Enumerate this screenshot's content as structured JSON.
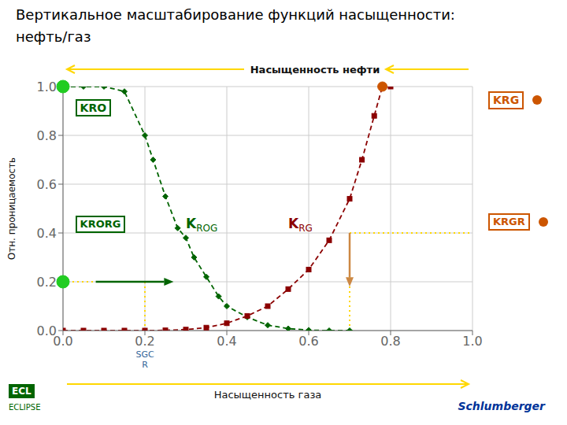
{
  "chart_data": {
    "type": "line",
    "title": "Вертикальное масштабирование функций насыщенности:",
    "subtitle": "нефть/газ",
    "xlabel": "Насыщенность газа",
    "ylabel": "Отн. проницаемость",
    "xlim": [
      0,
      1
    ],
    "ylim": [
      0,
      1
    ],
    "xticks": [
      {
        "value": 0,
        "label": "0.0"
      },
      0.2,
      0.4,
      0.6,
      0.8,
      {
        "value": 1.0,
        "label": "1.0"
      }
    ],
    "yticks": [
      {
        "value": 0,
        "label": "0.0"
      },
      0.2,
      0.4,
      0.6,
      0.8,
      {
        "value": 1.0,
        "label": "1.0"
      }
    ],
    "grid": true,
    "series": [
      {
        "name": "KROG",
        "color": "#006400",
        "marker": "diamond",
        "line_style": "dashed",
        "label_at": [
          0.3,
          0.42
        ],
        "x": [
          0.0,
          0.05,
          0.1,
          0.15,
          0.2,
          0.22,
          0.25,
          0.28,
          0.3,
          0.32,
          0.35,
          0.38,
          0.4,
          0.45,
          0.5,
          0.55,
          0.6,
          0.65,
          0.7
        ],
        "values": [
          1.0,
          1.0,
          1.0,
          0.98,
          0.8,
          0.7,
          0.55,
          0.42,
          0.38,
          0.3,
          0.22,
          0.14,
          0.1,
          0.055,
          0.022,
          0.008,
          0.002,
          0.0,
          0.0
        ]
      },
      {
        "name": "KRG",
        "color": "#8B0000",
        "marker": "square",
        "line_style": "dashed",
        "label_at": [
          0.55,
          0.42
        ],
        "x": [
          0.0,
          0.05,
          0.1,
          0.15,
          0.2,
          0.25,
          0.3,
          0.35,
          0.4,
          0.45,
          0.5,
          0.55,
          0.6,
          0.65,
          0.7,
          0.73,
          0.76,
          0.78,
          0.8
        ],
        "values": [
          0.0,
          0.0,
          0.0,
          0.0,
          0.0,
          0.001,
          0.004,
          0.012,
          0.03,
          0.06,
          0.1,
          0.17,
          0.25,
          0.37,
          0.54,
          0.7,
          0.88,
          1.0,
          1.0
        ]
      }
    ],
    "points": [
      {
        "x": 0,
        "y": 1.0,
        "color": "#22cc22"
      },
      {
        "x": 0,
        "y": 0.2,
        "color": "#22cc22"
      },
      {
        "x": 0.78,
        "y": 1.0,
        "color": "#CC5500"
      }
    ],
    "reference_lines": [
      {
        "x": [
          0,
          0.2
        ],
        "y": [
          0.2,
          0.2
        ],
        "color": "#FFD700",
        "line_style": "dotted"
      },
      {
        "x": [
          0.2,
          0.2
        ],
        "y": [
          0,
          0.2
        ],
        "color": "#FFD700",
        "line_style": "dotted"
      },
      {
        "x": [
          0.7,
          1.0
        ],
        "y": [
          0.4,
          0.4
        ],
        "color": "#FFD700",
        "line_style": "dotted"
      },
      {
        "x": [
          0.7,
          0.7
        ],
        "y": [
          0,
          0.4
        ],
        "color": "#FFD700",
        "line_style": "dotted"
      }
    ],
    "arrows": [
      {
        "x": [
          0.08,
          0.27
        ],
        "y": [
          0.2,
          0.2
        ],
        "color": "#006400"
      },
      {
        "x": [
          0.7,
          0.7
        ],
        "y": [
          0.4,
          0.18
        ],
        "color": "#CC8844"
      }
    ],
    "annotations": [
      {
        "text": "Насыщенность нефти"
      },
      {
        "text": "SGC\nR",
        "x": 0.2,
        "color": "#336699"
      },
      {
        "text": "KRO",
        "color": "#006400"
      },
      {
        "text": "KRORG",
        "color": "#006400"
      },
      {
        "text": "KRG",
        "color": "#CC5500"
      },
      {
        "text": "KRGR",
        "color": "#CC5500"
      },
      {
        "text": "ECL",
        "color": "#006400"
      },
      {
        "text": "ECLIPSE",
        "color": "#006400"
      },
      {
        "text": "Schlumberger",
        "color": "#003399"
      }
    ]
  }
}
